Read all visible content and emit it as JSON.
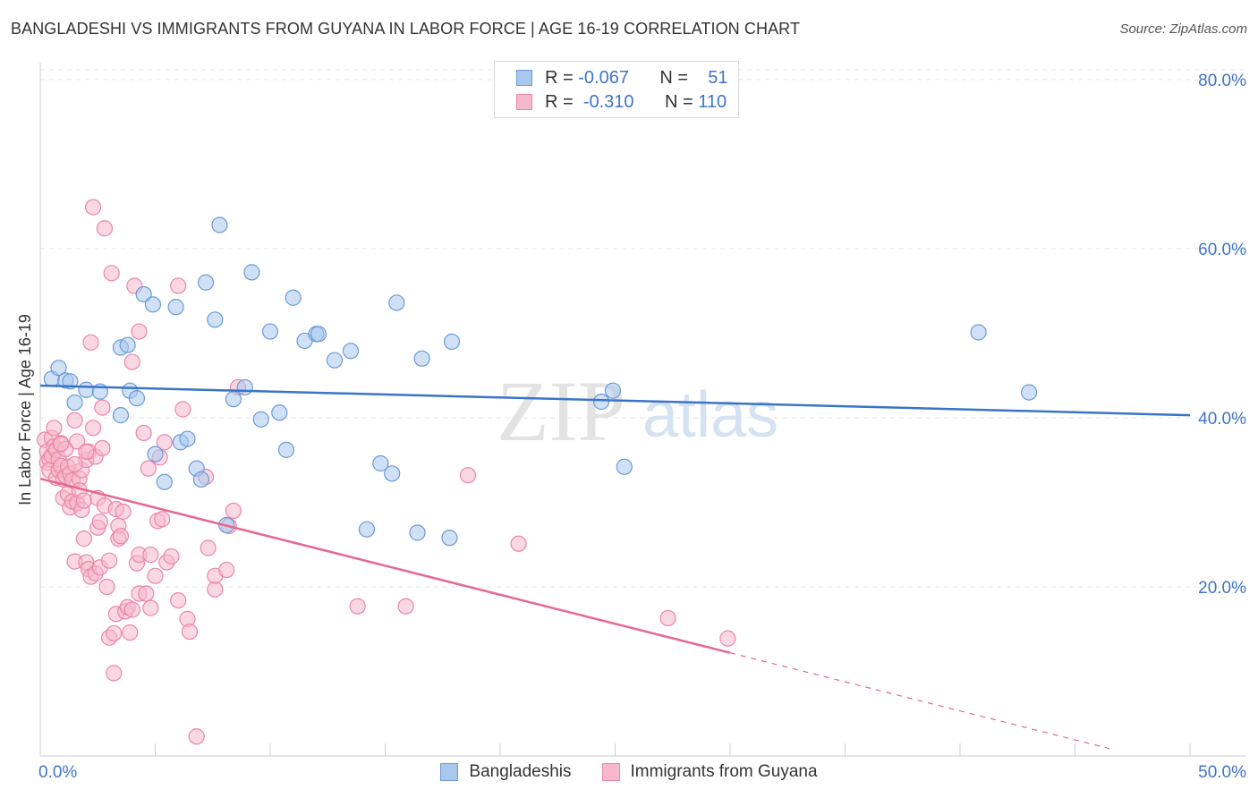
{
  "header": {
    "title": "BANGLADESHI VS IMMIGRANTS FROM GUYANA IN LABOR FORCE | AGE 16-19 CORRELATION CHART",
    "source": "Source: ZipAtlas.com"
  },
  "legend": {
    "blue": {
      "r_label": "R =",
      "r_value": "-0.067",
      "n_label": "N =",
      "n_value": "51"
    },
    "pink": {
      "r_label": "R =",
      "r_value": "-0.310",
      "n_label": "N =",
      "n_value": "110"
    }
  },
  "bottom_legend": {
    "blue": "Bangladeshis",
    "pink": "Immigrants from Guyana"
  },
  "watermark": {
    "zip": "ZIP",
    "atlas": "atlas"
  },
  "colors": {
    "blue_fill": "#aac8ee",
    "blue_stroke": "#6a9ad8",
    "blue_line": "#3a74c8",
    "pink_fill": "#f6b8cc",
    "pink_stroke": "#ec85a6",
    "pink_line": "#e4698f",
    "grid": "#e6e6e6",
    "axis_label": "#3f74c8"
  },
  "chart_data": {
    "type": "scatter",
    "title": "BANGLADESHI VS IMMIGRANTS FROM GUYANA IN LABOR FORCE | AGE 16-19 CORRELATION CHART",
    "xlabel": "",
    "ylabel": "In Labor Force | Age 16-19",
    "xlim": [
      0,
      50
    ],
    "ylim": [
      0,
      82
    ],
    "x_tick_labels": [
      "0.0%",
      "50.0%"
    ],
    "y_ticks": [
      20,
      40,
      60,
      80
    ],
    "y_tick_labels": [
      "20.0%",
      "40.0%",
      "60.0%",
      "80.0%"
    ],
    "grid": true,
    "series": [
      {
        "name": "Bangladeshis",
        "r": -0.067,
        "n": 51,
        "trend": {
          "x0": 0,
          "y0": 43.8,
          "x1": 50,
          "y1": 40.3,
          "dashed_to": 50
        },
        "points": [
          [
            0.5,
            44.6
          ],
          [
            0.8,
            45.9
          ],
          [
            1.1,
            44.4
          ],
          [
            1.3,
            44.3
          ],
          [
            1.5,
            41.8
          ],
          [
            2.0,
            43.3
          ],
          [
            2.6,
            43.1
          ],
          [
            3.5,
            48.3
          ],
          [
            3.8,
            48.6
          ],
          [
            3.5,
            40.3
          ],
          [
            3.9,
            43.2
          ],
          [
            4.2,
            42.3
          ],
          [
            4.5,
            54.6
          ],
          [
            4.9,
            53.4
          ],
          [
            5.0,
            35.7
          ],
          [
            5.4,
            32.4
          ],
          [
            5.9,
            53.1
          ],
          [
            6.1,
            37.1
          ],
          [
            6.4,
            37.5
          ],
          [
            6.8,
            34.0
          ],
          [
            7.0,
            32.7
          ],
          [
            7.2,
            56.0
          ],
          [
            7.6,
            51.6
          ],
          [
            7.8,
            62.8
          ],
          [
            8.1,
            27.3
          ],
          [
            8.4,
            42.2
          ],
          [
            8.9,
            43.6
          ],
          [
            9.2,
            57.2
          ],
          [
            9.6,
            39.8
          ],
          [
            10.0,
            50.2
          ],
          [
            10.4,
            40.6
          ],
          [
            10.7,
            36.2
          ],
          [
            11.0,
            54.2
          ],
          [
            11.5,
            49.1
          ],
          [
            12.0,
            49.9
          ],
          [
            12.1,
            49.9
          ],
          [
            12.8,
            46.8
          ],
          [
            13.5,
            47.9
          ],
          [
            14.2,
            26.8
          ],
          [
            14.8,
            34.6
          ],
          [
            15.3,
            33.4
          ],
          [
            15.5,
            53.6
          ],
          [
            16.4,
            26.4
          ],
          [
            16.6,
            47.0
          ],
          [
            17.8,
            25.8
          ],
          [
            17.9,
            49.0
          ],
          [
            24.4,
            41.9
          ],
          [
            24.9,
            43.2
          ],
          [
            25.4,
            34.2
          ],
          [
            40.8,
            50.1
          ],
          [
            43.0,
            43.0
          ]
        ]
      },
      {
        "name": "Immigrants from Guyana",
        "r": -0.31,
        "n": 110,
        "trend": {
          "x0": 0,
          "y0": 32.8,
          "x1": 30,
          "y1": 12.2,
          "dashed_to": 46.5
        },
        "points": [
          [
            0.2,
            37.4
          ],
          [
            0.3,
            36.0
          ],
          [
            0.3,
            34.7
          ],
          [
            0.4,
            35.1
          ],
          [
            0.4,
            33.8
          ],
          [
            0.5,
            37.6
          ],
          [
            0.5,
            35.5
          ],
          [
            0.6,
            38.8
          ],
          [
            0.6,
            36.6
          ],
          [
            0.7,
            32.9
          ],
          [
            0.7,
            36.2
          ],
          [
            0.8,
            33.8
          ],
          [
            0.8,
            35.1
          ],
          [
            0.9,
            37.0
          ],
          [
            0.9,
            34.3
          ],
          [
            1.0,
            30.5
          ],
          [
            1.0,
            32.7
          ],
          [
            1.1,
            36.3
          ],
          [
            1.1,
            33.1
          ],
          [
            1.2,
            31.0
          ],
          [
            1.2,
            34.2
          ],
          [
            1.3,
            29.4
          ],
          [
            1.3,
            33.4
          ],
          [
            1.4,
            30.1
          ],
          [
            1.4,
            32.6
          ],
          [
            1.5,
            23.0
          ],
          [
            1.5,
            39.7
          ],
          [
            1.6,
            37.2
          ],
          [
            1.6,
            29.9
          ],
          [
            1.7,
            32.8
          ],
          [
            1.7,
            31.4
          ],
          [
            1.8,
            33.8
          ],
          [
            1.8,
            29.1
          ],
          [
            1.9,
            25.7
          ],
          [
            1.9,
            30.2
          ],
          [
            2.0,
            22.9
          ],
          [
            2.0,
            35.0
          ],
          [
            2.1,
            36.0
          ],
          [
            2.1,
            22.1
          ],
          [
            2.2,
            21.2
          ],
          [
            2.2,
            48.9
          ],
          [
            2.3,
            64.9
          ],
          [
            2.3,
            38.8
          ],
          [
            2.4,
            35.4
          ],
          [
            2.4,
            21.6
          ],
          [
            2.5,
            27.0
          ],
          [
            2.5,
            30.5
          ],
          [
            2.6,
            27.7
          ],
          [
            2.6,
            22.3
          ],
          [
            2.7,
            36.4
          ],
          [
            2.7,
            41.2
          ],
          [
            2.8,
            62.4
          ],
          [
            2.8,
            29.6
          ],
          [
            2.9,
            20.0
          ],
          [
            3.0,
            14.0
          ],
          [
            3.0,
            23.1
          ],
          [
            3.1,
            57.1
          ],
          [
            3.2,
            14.5
          ],
          [
            3.2,
            9.8
          ],
          [
            3.3,
            29.2
          ],
          [
            3.3,
            16.8
          ],
          [
            3.4,
            27.2
          ],
          [
            3.4,
            25.7
          ],
          [
            3.5,
            26.0
          ],
          [
            3.6,
            28.9
          ],
          [
            3.7,
            17.1
          ],
          [
            3.8,
            17.6
          ],
          [
            3.9,
            14.6
          ],
          [
            4.0,
            17.3
          ],
          [
            4.0,
            46.6
          ],
          [
            4.1,
            55.6
          ],
          [
            4.2,
            22.8
          ],
          [
            4.3,
            19.2
          ],
          [
            4.3,
            50.2
          ],
          [
            4.3,
            23.8
          ],
          [
            4.5,
            38.2
          ],
          [
            4.6,
            19.2
          ],
          [
            4.7,
            34.0
          ],
          [
            4.8,
            17.5
          ],
          [
            4.8,
            23.8
          ],
          [
            5.0,
            21.3
          ],
          [
            5.1,
            27.8
          ],
          [
            5.2,
            35.3
          ],
          [
            5.3,
            28.0
          ],
          [
            5.4,
            37.1
          ],
          [
            5.5,
            22.9
          ],
          [
            5.7,
            23.6
          ],
          [
            6.0,
            55.6
          ],
          [
            6.0,
            18.4
          ],
          [
            6.2,
            41.0
          ],
          [
            6.4,
            16.2
          ],
          [
            6.5,
            14.7
          ],
          [
            6.8,
            2.3
          ],
          [
            7.2,
            33.0
          ],
          [
            7.3,
            24.6
          ],
          [
            7.6,
            19.7
          ],
          [
            7.6,
            21.3
          ],
          [
            8.1,
            22.0
          ],
          [
            8.2,
            27.2
          ],
          [
            8.4,
            29.0
          ],
          [
            8.6,
            43.6
          ],
          [
            13.8,
            17.7
          ],
          [
            15.9,
            17.7
          ],
          [
            18.6,
            33.2
          ],
          [
            20.8,
            25.1
          ],
          [
            27.3,
            16.3
          ],
          [
            29.9,
            13.9
          ],
          [
            2.0,
            36.0
          ],
          [
            0.9,
            36.9
          ],
          [
            1.5,
            34.5
          ]
        ]
      }
    ]
  }
}
